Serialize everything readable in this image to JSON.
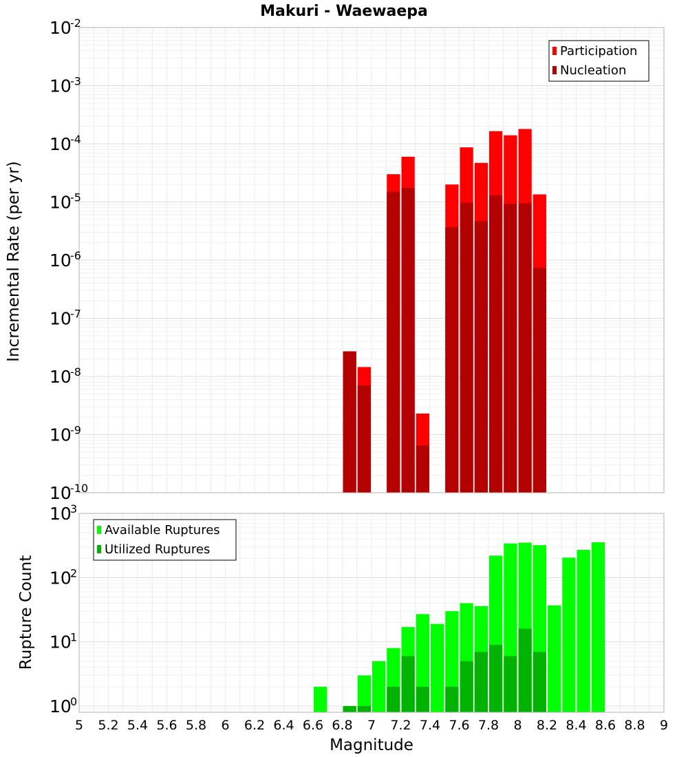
{
  "chart_data": [
    {
      "type": "bar",
      "title": "Makuri - Waewaepa",
      "xlabel": "Magnitude",
      "ylabel": "Incremental Rate (per yr)",
      "yscale": "log",
      "ylim": [
        1e-10,
        0.01
      ],
      "xlim": [
        5,
        9
      ],
      "grid": true,
      "legend_position": "top-right",
      "y_ticks": [
        {
          "base": "10",
          "exp": "-10",
          "value": 1e-10
        },
        {
          "base": "10",
          "exp": "-9",
          "value": 1e-09
        },
        {
          "base": "10",
          "exp": "-8",
          "value": 1e-08
        },
        {
          "base": "10",
          "exp": "-7",
          "value": 1e-07
        },
        {
          "base": "10",
          "exp": "-6",
          "value": 1e-06
        },
        {
          "base": "10",
          "exp": "-5",
          "value": 1e-05
        },
        {
          "base": "10",
          "exp": "-4",
          "value": 0.0001
        },
        {
          "base": "10",
          "exp": "-3",
          "value": 0.001
        },
        {
          "base": "10",
          "exp": "-2",
          "value": 0.01
        }
      ],
      "series": [
        {
          "name": "Participation",
          "color": "#ff0000",
          "points": [
            {
              "x": 6.85,
              "y": 2.7e-08
            },
            {
              "x": 6.95,
              "y": 1.45e-08
            },
            {
              "x": 7.15,
              "y": 3e-05
            },
            {
              "x": 7.25,
              "y": 6e-05
            },
            {
              "x": 7.35,
              "y": 2.3e-09
            },
            {
              "x": 7.55,
              "y": 2e-05
            },
            {
              "x": 7.65,
              "y": 8.7e-05
            },
            {
              "x": 7.75,
              "y": 4.7e-05
            },
            {
              "x": 7.85,
              "y": 0.000165
            },
            {
              "x": 7.95,
              "y": 0.00014
            },
            {
              "x": 8.05,
              "y": 0.00018
            },
            {
              "x": 8.15,
              "y": 1.35e-05
            }
          ]
        },
        {
          "name": "Nucleation",
          "color": "#b30000",
          "points": [
            {
              "x": 6.85,
              "y": 2.7e-08
            },
            {
              "x": 6.95,
              "y": 7e-09
            },
            {
              "x": 7.15,
              "y": 1.5e-05
            },
            {
              "x": 7.25,
              "y": 1.75e-05
            },
            {
              "x": 7.35,
              "y": 6.5e-10
            },
            {
              "x": 7.55,
              "y": 3.7e-06
            },
            {
              "x": 7.65,
              "y": 9.7e-06
            },
            {
              "x": 7.75,
              "y": 4.7e-06
            },
            {
              "x": 7.85,
              "y": 1.3e-05
            },
            {
              "x": 7.95,
              "y": 9.3e-06
            },
            {
              "x": 8.05,
              "y": 9.5e-06
            },
            {
              "x": 8.15,
              "y": 7.3e-07
            }
          ]
        }
      ]
    },
    {
      "type": "bar",
      "title": "",
      "xlabel": "Magnitude",
      "ylabel": "Rupture Count",
      "yscale": "log",
      "ylim": [
        0.8,
        1000
      ],
      "xlim": [
        5,
        9
      ],
      "grid": true,
      "legend_position": "top-left",
      "x_ticks": [
        "5",
        "5.2",
        "5.4",
        "5.6",
        "5.8",
        "6",
        "6.2",
        "6.4",
        "6.6",
        "6.8",
        "7",
        "7.2",
        "7.4",
        "7.6",
        "7.8",
        "8",
        "8.2",
        "8.4",
        "8.6",
        "8.8",
        "9"
      ],
      "y_ticks": [
        {
          "base": "10",
          "exp": "0",
          "value": 1
        },
        {
          "base": "10",
          "exp": "1",
          "value": 10
        },
        {
          "base": "10",
          "exp": "2",
          "value": 100
        },
        {
          "base": "10",
          "exp": "3",
          "value": 1000
        }
      ],
      "series": [
        {
          "name": "Available Ruptures",
          "color": "#00ff00",
          "points": [
            {
              "x": 6.65,
              "y": 2
            },
            {
              "x": 6.85,
              "y": 1
            },
            {
              "x": 6.95,
              "y": 3
            },
            {
              "x": 7.05,
              "y": 5
            },
            {
              "x": 7.15,
              "y": 8
            },
            {
              "x": 7.25,
              "y": 17
            },
            {
              "x": 7.35,
              "y": 27
            },
            {
              "x": 7.45,
              "y": 19
            },
            {
              "x": 7.55,
              "y": 30
            },
            {
              "x": 7.65,
              "y": 40
            },
            {
              "x": 7.75,
              "y": 36
            },
            {
              "x": 7.85,
              "y": 220
            },
            {
              "x": 7.95,
              "y": 340
            },
            {
              "x": 8.05,
              "y": 350
            },
            {
              "x": 8.15,
              "y": 320
            },
            {
              "x": 8.25,
              "y": 37
            },
            {
              "x": 8.35,
              "y": 205
            },
            {
              "x": 8.45,
              "y": 270
            },
            {
              "x": 8.55,
              "y": 355
            }
          ]
        },
        {
          "name": "Utilized Ruptures",
          "color": "#00b300",
          "points": [
            {
              "x": 6.85,
              "y": 1
            },
            {
              "x": 6.95,
              "y": 1
            },
            {
              "x": 7.15,
              "y": 2
            },
            {
              "x": 7.25,
              "y": 6
            },
            {
              "x": 7.35,
              "y": 2
            },
            {
              "x": 7.55,
              "y": 2
            },
            {
              "x": 7.65,
              "y": 5
            },
            {
              "x": 7.75,
              "y": 7
            },
            {
              "x": 7.85,
              "y": 9
            },
            {
              "x": 7.95,
              "y": 6
            },
            {
              "x": 8.05,
              "y": 16
            },
            {
              "x": 8.15,
              "y": 7
            }
          ]
        }
      ]
    }
  ]
}
